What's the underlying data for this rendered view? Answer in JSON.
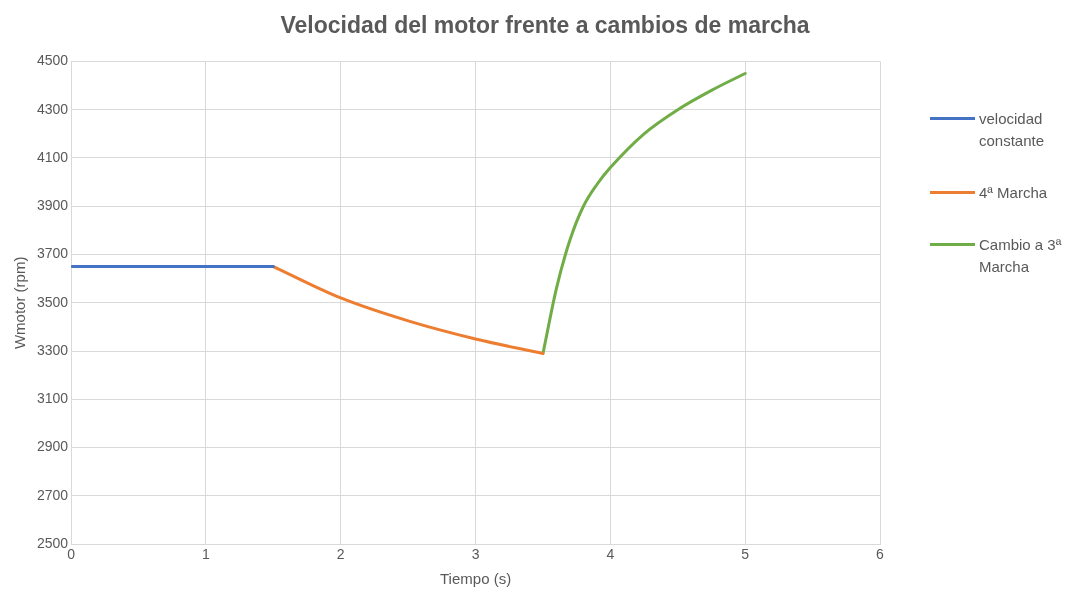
{
  "chart_data": {
    "type": "line",
    "title": "Velocidad del motor frente a cambios de marcha",
    "xlabel": "Tiempo (s)",
    "ylabel": "Wmotor (rpm)",
    "xlim": [
      0,
      6
    ],
    "xticks": [
      0,
      1,
      2,
      3,
      4,
      5,
      6
    ],
    "ylim": [
      2500,
      4500
    ],
    "yticks": [
      2500,
      2700,
      2900,
      3100,
      3300,
      3500,
      3700,
      3900,
      4100,
      4300,
      4500
    ],
    "grid": true,
    "legend": "right",
    "marker": "none",
    "line_style": "solid",
    "series": [
      {
        "name": "velocidad constante",
        "color": "#4472c4",
        "x": [
          0,
          1.5
        ],
        "values": [
          3650,
          3650
        ]
      },
      {
        "name": "4ª Marcha",
        "color": "#ed7d31",
        "x": [
          1.5,
          2,
          2.5,
          3,
          3.5
        ],
        "values": [
          3650,
          3520,
          3425,
          3350,
          3290
        ]
      },
      {
        "name": "Cambio a 3ª Marcha",
        "color": "#70ad47",
        "x": [
          3.5,
          3.6,
          3.7,
          3.8,
          3.9,
          4,
          4.25,
          4.5,
          4.75,
          5
        ],
        "values": [
          3290,
          3560,
          3760,
          3900,
          3990,
          4060,
          4200,
          4300,
          4380,
          4450
        ]
      }
    ]
  }
}
